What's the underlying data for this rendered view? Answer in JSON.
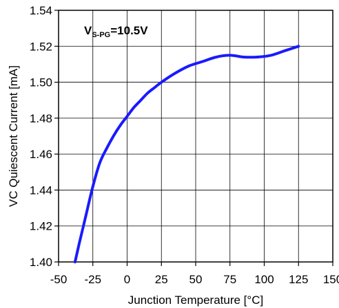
{
  "chart_data": {
    "type": "line",
    "xlabel": "Junction Temperature [°C]",
    "ylabel": "VC Quiescent Current [mA]",
    "xlim": [
      -50,
      150
    ],
    "ylim": [
      1.4,
      1.54
    ],
    "x_ticks": [
      -50,
      -25,
      0,
      25,
      50,
      75,
      100,
      125,
      150
    ],
    "x_tick_labels": [
      "-50",
      "-25",
      "0",
      "25",
      "50",
      "75",
      "100",
      "125",
      "150"
    ],
    "y_ticks": [
      1.4,
      1.42,
      1.44,
      1.46,
      1.48,
      1.5,
      1.52,
      1.54
    ],
    "y_tick_labels": [
      "1.40",
      "1.42",
      "1.44",
      "1.46",
      "1.48",
      "1.50",
      "1.52",
      "1.54"
    ],
    "grid": true,
    "line_color": "#1a1aff",
    "annotation": {
      "main": "V",
      "subscript": "S-PG",
      "suffix": "=10.5V"
    },
    "series": [
      {
        "x": [
          -38,
          -35,
          -30,
          -25,
          -20,
          -15,
          -10,
          -5,
          0,
          5,
          10,
          15,
          20,
          25,
          35,
          45,
          55,
          65,
          75,
          85,
          95,
          105,
          115,
          125
        ],
        "y": [
          1.4,
          1.41,
          1.426,
          1.442,
          1.455,
          1.463,
          1.47,
          1.476,
          1.481,
          1.486,
          1.49,
          1.494,
          1.497,
          1.5,
          1.505,
          1.509,
          1.5115,
          1.514,
          1.515,
          1.514,
          1.514,
          1.515,
          1.5175,
          1.52
        ]
      }
    ]
  }
}
